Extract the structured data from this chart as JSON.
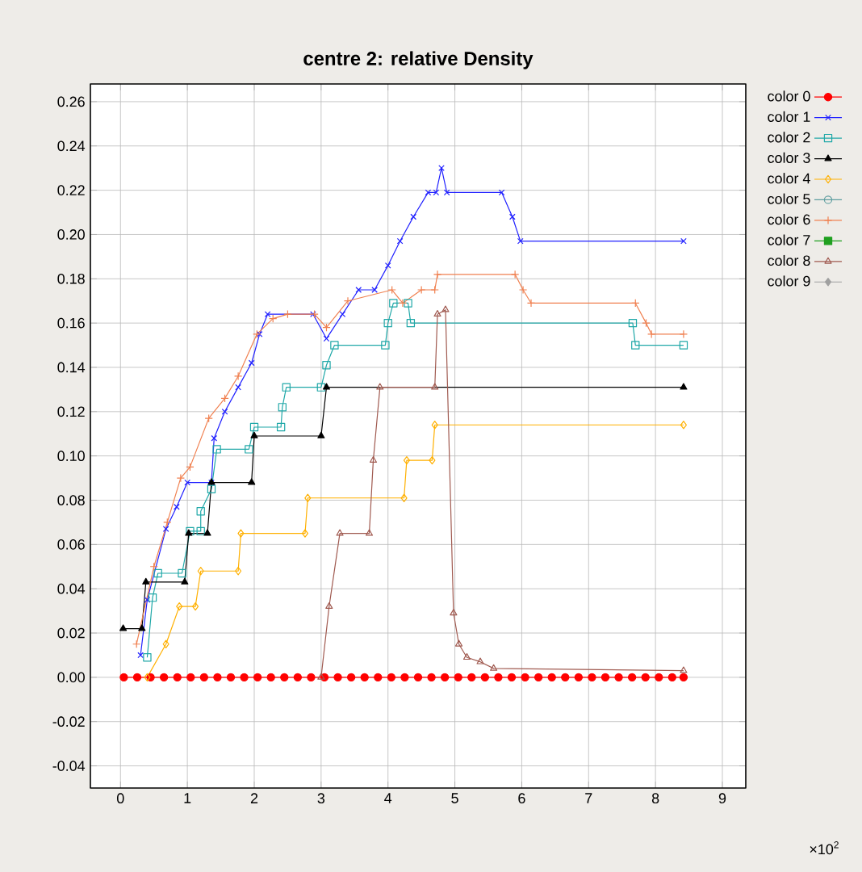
{
  "chart_data": {
    "type": "line",
    "title": "centre 2: relative Density",
    "annotations": [
      "×10$^{2}$"
    ],
    "xlim": [
      -0.45,
      9.35
    ],
    "ylim": [
      -0.05,
      0.268
    ],
    "xticks": [
      0,
      1,
      2,
      3,
      4,
      5,
      6,
      7,
      8,
      9
    ],
    "yticks": [
      {
        "value": -0.04,
        "label": "-0.04"
      },
      {
        "value": -0.02,
        "label": "-0.02"
      },
      {
        "value": 0,
        "label": "0.00"
      },
      {
        "value": 0.02,
        "label": "0.02"
      },
      {
        "value": 0.04,
        "label": "0.04"
      },
      {
        "value": 0.06,
        "label": "0.06"
      },
      {
        "value": 0.08,
        "label": "0.08"
      },
      {
        "value": 0.1,
        "label": "0.10"
      },
      {
        "value": 0.12,
        "label": "0.12"
      },
      {
        "value": 0.14,
        "label": "0.14"
      },
      {
        "value": 0.16,
        "label": "0.16"
      },
      {
        "value": 0.18,
        "label": "0.18"
      },
      {
        "value": 0.2,
        "label": "0.20"
      },
      {
        "value": 0.22,
        "label": "0.22"
      },
      {
        "value": 0.24,
        "label": "0.24"
      },
      {
        "value": 0.26,
        "label": "0.26"
      }
    ],
    "grid": true,
    "legend": "right",
    "line_style": "solid",
    "series": [
      {
        "name": "color 0",
        "color": "#ff0000",
        "marker": "circle",
        "x": [
          0.05,
          0.25,
          0.45,
          0.65,
          0.85,
          1.05,
          1.25,
          1.45,
          1.65,
          1.85,
          2.05,
          2.25,
          2.45,
          2.65,
          2.85,
          3.05,
          3.25,
          3.45,
          3.65,
          3.85,
          4.05,
          4.25,
          4.45,
          4.65,
          4.85,
          5.05,
          5.25,
          5.45,
          5.65,
          5.85,
          6.05,
          6.25,
          6.45,
          6.65,
          6.85,
          7.05,
          7.25,
          7.45,
          7.65,
          7.85,
          8.05,
          8.25,
          8.42
        ],
        "values": [
          0,
          0,
          0,
          0,
          0,
          0,
          0,
          0,
          0,
          0,
          0,
          0,
          0,
          0,
          0,
          0,
          0,
          0,
          0,
          0,
          0,
          0,
          0,
          0,
          0,
          0,
          0,
          0,
          0,
          0,
          0,
          0,
          0,
          0,
          0,
          0,
          0,
          0,
          0,
          0,
          0,
          0,
          0
        ]
      },
      {
        "name": "color 1",
        "color": "#2020ff",
        "marker": "cross",
        "x": [
          0.3,
          0.4,
          0.68,
          0.84,
          1.0,
          1.36,
          1.4,
          1.56,
          1.76,
          1.96,
          2.08,
          2.2,
          2.88,
          3.08,
          3.32,
          3.56,
          3.8,
          4.0,
          4.18,
          4.38,
          4.6,
          4.72,
          4.8,
          4.88,
          5.7,
          5.86,
          5.98,
          8.42
        ],
        "values": [
          0.01,
          0.035,
          0.067,
          0.077,
          0.088,
          0.088,
          0.108,
          0.12,
          0.131,
          0.142,
          0.155,
          0.164,
          0.164,
          0.153,
          0.164,
          0.175,
          0.175,
          0.186,
          0.197,
          0.208,
          0.219,
          0.219,
          0.23,
          0.219,
          0.219,
          0.208,
          0.197,
          0.197
        ]
      },
      {
        "name": "color 2",
        "color": "#20a8a8",
        "marker": "square-open",
        "x": [
          0.4,
          0.48,
          0.56,
          0.92,
          1.04,
          1.2,
          1.2,
          1.36,
          1.44,
          1.92,
          2.0,
          2.4,
          2.42,
          2.48,
          3.0,
          3.08,
          3.2,
          3.96,
          4.0,
          4.08,
          4.3,
          4.34,
          7.66,
          7.7,
          8.42
        ],
        "values": [
          0.009,
          0.036,
          0.047,
          0.047,
          0.066,
          0.066,
          0.075,
          0.085,
          0.103,
          0.103,
          0.113,
          0.113,
          0.122,
          0.131,
          0.131,
          0.141,
          0.15,
          0.15,
          0.16,
          0.169,
          0.169,
          0.16,
          0.16,
          0.15,
          0.15
        ]
      },
      {
        "name": "color 3",
        "color": "#000000",
        "marker": "triangle",
        "x": [
          0.04,
          0.32,
          0.38,
          0.96,
          1.02,
          1.3,
          1.36,
          1.96,
          2.0,
          3.0,
          3.08,
          8.42
        ],
        "values": [
          0.022,
          0.022,
          0.043,
          0.043,
          0.065,
          0.065,
          0.088,
          0.088,
          0.109,
          0.109,
          0.131,
          0.131
        ]
      },
      {
        "name": "color 4",
        "color": "#ffb000",
        "marker": "diamond-open",
        "x": [
          0.4,
          0.68,
          0.88,
          1.12,
          1.2,
          1.76,
          1.8,
          2.76,
          2.8,
          4.24,
          4.28,
          4.66,
          4.7,
          8.42
        ],
        "values": [
          0,
          0.015,
          0.032,
          0.032,
          0.048,
          0.048,
          0.065,
          0.065,
          0.081,
          0.081,
          0.098,
          0.098,
          0.114,
          0.114
        ]
      },
      {
        "name": "color 5",
        "color": "#5f9ea0",
        "marker": "circle-open"
      },
      {
        "name": "color 6",
        "color": "#f08050",
        "marker": "plus",
        "x": [
          0.24,
          0.5,
          0.7,
          0.9,
          1.04,
          1.32,
          1.56,
          1.76,
          2.04,
          2.28,
          2.5,
          2.9,
          3.08,
          3.4,
          4.06,
          4.22,
          4.5,
          4.7,
          4.74,
          5.9,
          6.02,
          6.14,
          7.7,
          7.86,
          7.94,
          8.42
        ],
        "values": [
          0.015,
          0.05,
          0.07,
          0.09,
          0.095,
          0.117,
          0.126,
          0.136,
          0.155,
          0.162,
          0.164,
          0.164,
          0.158,
          0.17,
          0.175,
          0.169,
          0.175,
          0.175,
          0.182,
          0.182,
          0.175,
          0.169,
          0.169,
          0.16,
          0.155,
          0.155
        ]
      },
      {
        "name": "color 7",
        "color": "#20a020",
        "marker": "square"
      },
      {
        "name": "color 8",
        "color": "#a05a50",
        "marker": "triangle-open",
        "x": [
          3.0,
          3.12,
          3.28,
          3.72,
          3.78,
          3.88,
          4.7,
          4.74,
          4.86,
          4.98,
          5.06,
          5.18,
          5.38,
          5.58,
          8.42
        ],
        "values": [
          0,
          0.032,
          0.065,
          0.065,
          0.098,
          0.131,
          0.131,
          0.164,
          0.166,
          0.029,
          0.015,
          0.009,
          0.007,
          0.004,
          0.003
        ]
      },
      {
        "name": "color 9",
        "color": "#a0a0a0",
        "marker": "diamond"
      }
    ]
  }
}
